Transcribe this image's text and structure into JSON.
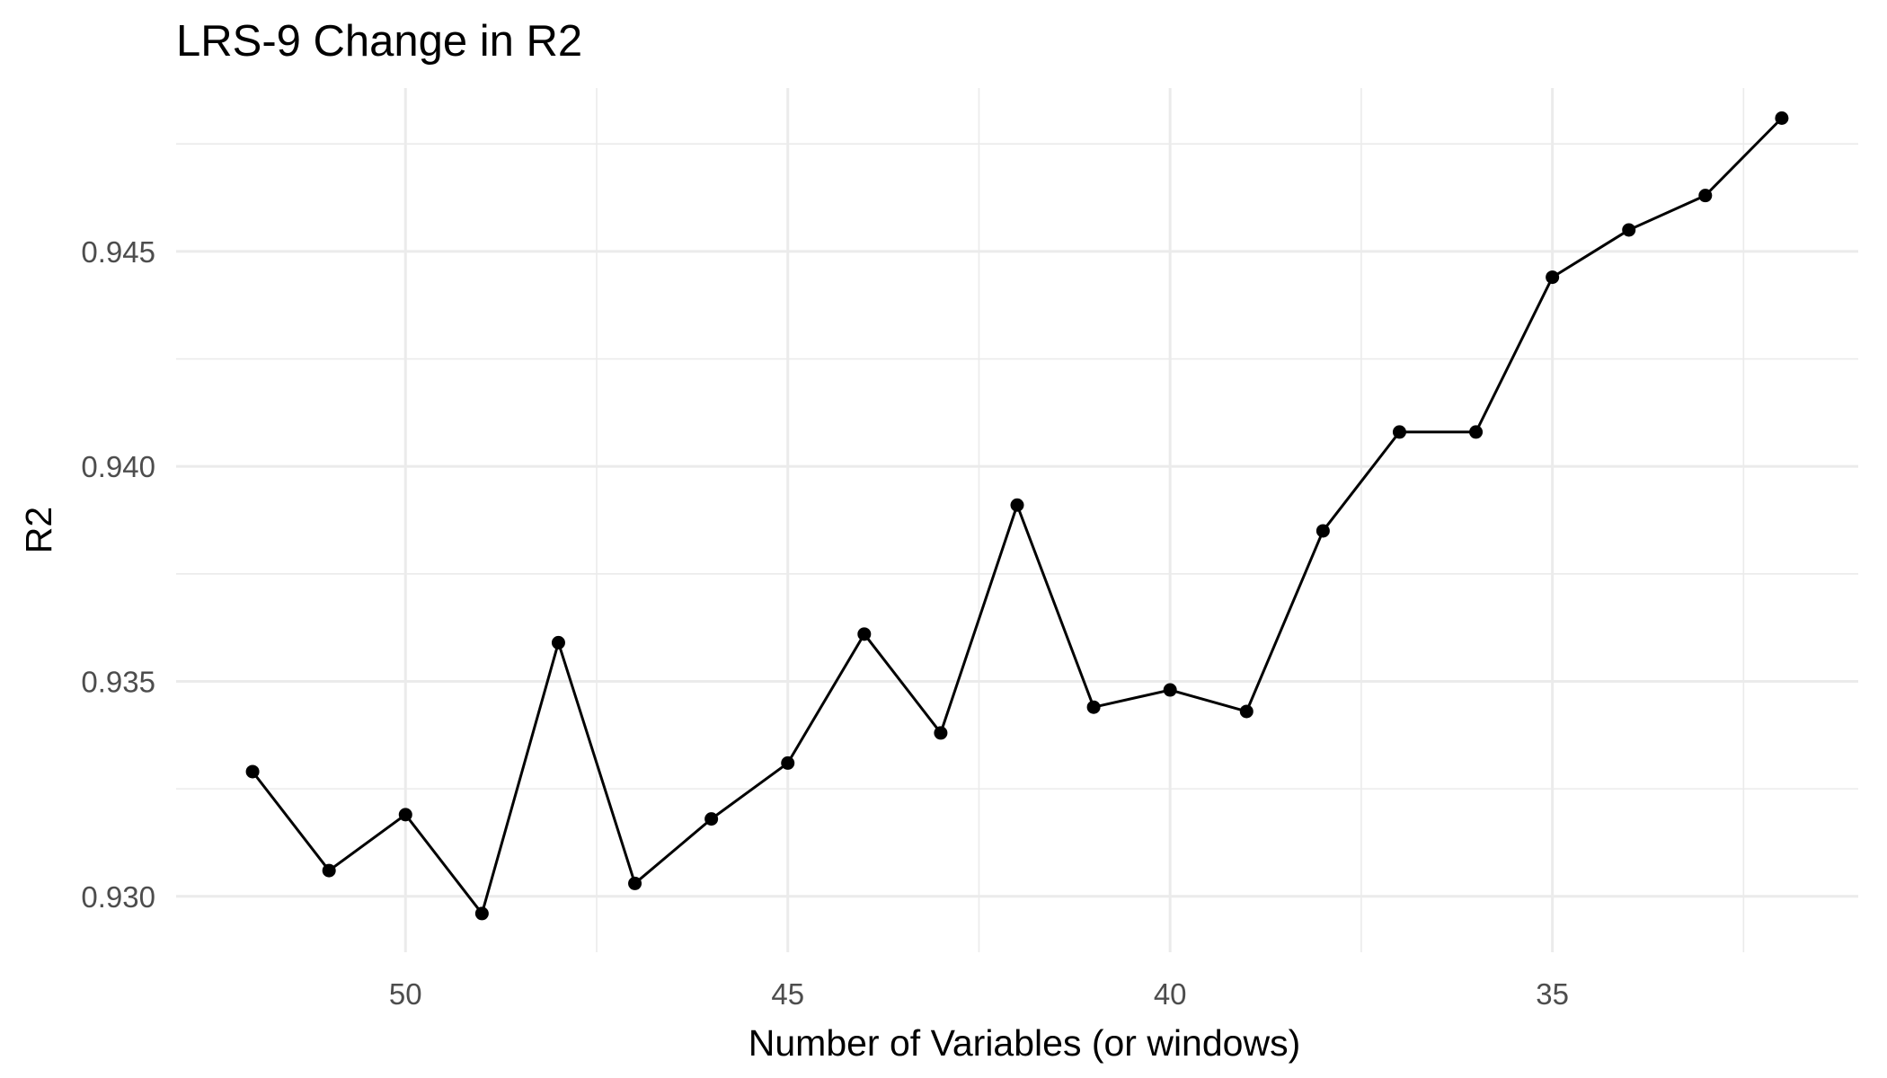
{
  "chart_data": {
    "type": "line",
    "title": "LRS-9 Change in R2",
    "xlabel": "Number of Variables (or windows)",
    "ylabel": "R2",
    "x_reversed": true,
    "xlim": [
      53,
      31
    ],
    "ylim": [
      0.9287,
      0.9488
    ],
    "x_major_ticks": [
      50,
      45,
      40,
      35
    ],
    "x_tick_labels": [
      "50",
      "45",
      "40",
      "35"
    ],
    "x_minor_ticks": [
      47.5,
      42.5,
      37.5,
      32.5
    ],
    "y_major_ticks": [
      0.93,
      0.935,
      0.94,
      0.945
    ],
    "y_tick_labels": [
      "0.930",
      "0.935",
      "0.940",
      "0.945"
    ],
    "y_minor_ticks": [
      0.9325,
      0.9375,
      0.9425,
      0.9475
    ],
    "grid": true,
    "legend": "none",
    "series": [
      {
        "color": "#000000",
        "x": [
          52,
          51,
          50,
          49,
          48,
          47,
          46,
          45,
          44,
          43,
          42,
          41,
          40,
          39,
          38,
          37,
          36,
          35,
          34,
          33,
          32
        ],
        "values": [
          0.9329,
          0.9306,
          0.9319,
          0.9296,
          0.9359,
          0.9303,
          0.9318,
          0.9331,
          0.9361,
          0.9338,
          0.9391,
          0.9344,
          0.9348,
          0.9343,
          0.9385,
          0.9408,
          0.9408,
          0.9444,
          0.9455,
          0.9463,
          0.9481
        ]
      }
    ]
  }
}
